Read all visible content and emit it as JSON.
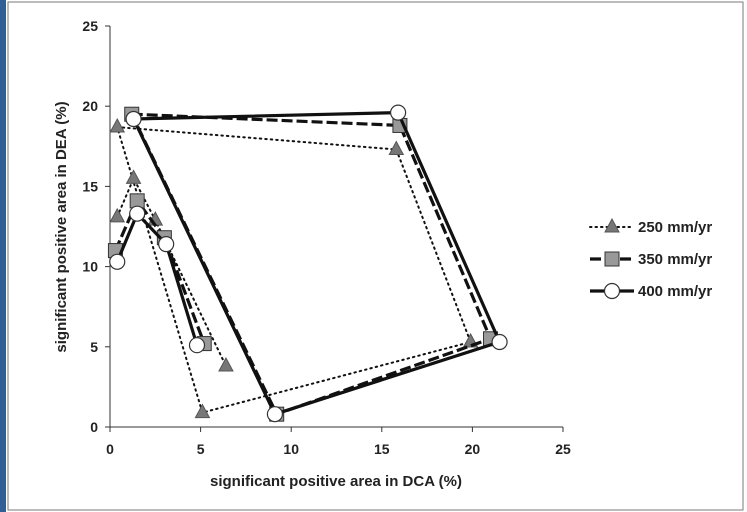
{
  "chart_data": {
    "type": "line",
    "title": "",
    "xlabel": "significant positive area in DCA (%)",
    "ylabel": "significant positive area in DEA (%)",
    "xlim": [
      0,
      25
    ],
    "ylim": [
      0,
      25
    ],
    "xticks": [
      0,
      5,
      10,
      15,
      20,
      25
    ],
    "yticks": [
      0,
      5,
      10,
      15,
      20,
      25
    ],
    "grid": false,
    "legend_position": "right",
    "series": [
      {
        "name": "250 mm/yr",
        "line_style": "dotted",
        "marker": "triangle",
        "color": "#777777",
        "points": [
          [
            0.4,
            18.7
          ],
          [
            15.8,
            17.3
          ],
          [
            19.9,
            5.3
          ],
          [
            5.1,
            0.9
          ],
          [
            0.4,
            13.1
          ],
          [
            1.3,
            15.5
          ],
          [
            2.5,
            12.9
          ],
          [
            6.4,
            3.8
          ]
        ]
      },
      {
        "name": "350 mm/yr",
        "line_style": "dashed",
        "marker": "square",
        "color": "#999999",
        "points": [
          [
            1.2,
            19.5
          ],
          [
            16.0,
            18.8
          ],
          [
            21.0,
            5.5
          ],
          [
            9.2,
            0.8
          ],
          [
            0.3,
            11.0
          ],
          [
            1.5,
            14.1
          ],
          [
            3.0,
            11.8
          ],
          [
            5.2,
            5.2
          ]
        ]
      },
      {
        "name": "400 mm/yr",
        "line_style": "solid",
        "marker": "circle",
        "color": "#ffffff",
        "points": [
          [
            1.3,
            19.2
          ],
          [
            15.9,
            19.6
          ],
          [
            21.5,
            5.3
          ],
          [
            9.1,
            0.8
          ],
          [
            0.4,
            10.3
          ],
          [
            1.5,
            13.3
          ],
          [
            3.1,
            11.4
          ],
          [
            4.8,
            5.1
          ]
        ]
      }
    ]
  }
}
